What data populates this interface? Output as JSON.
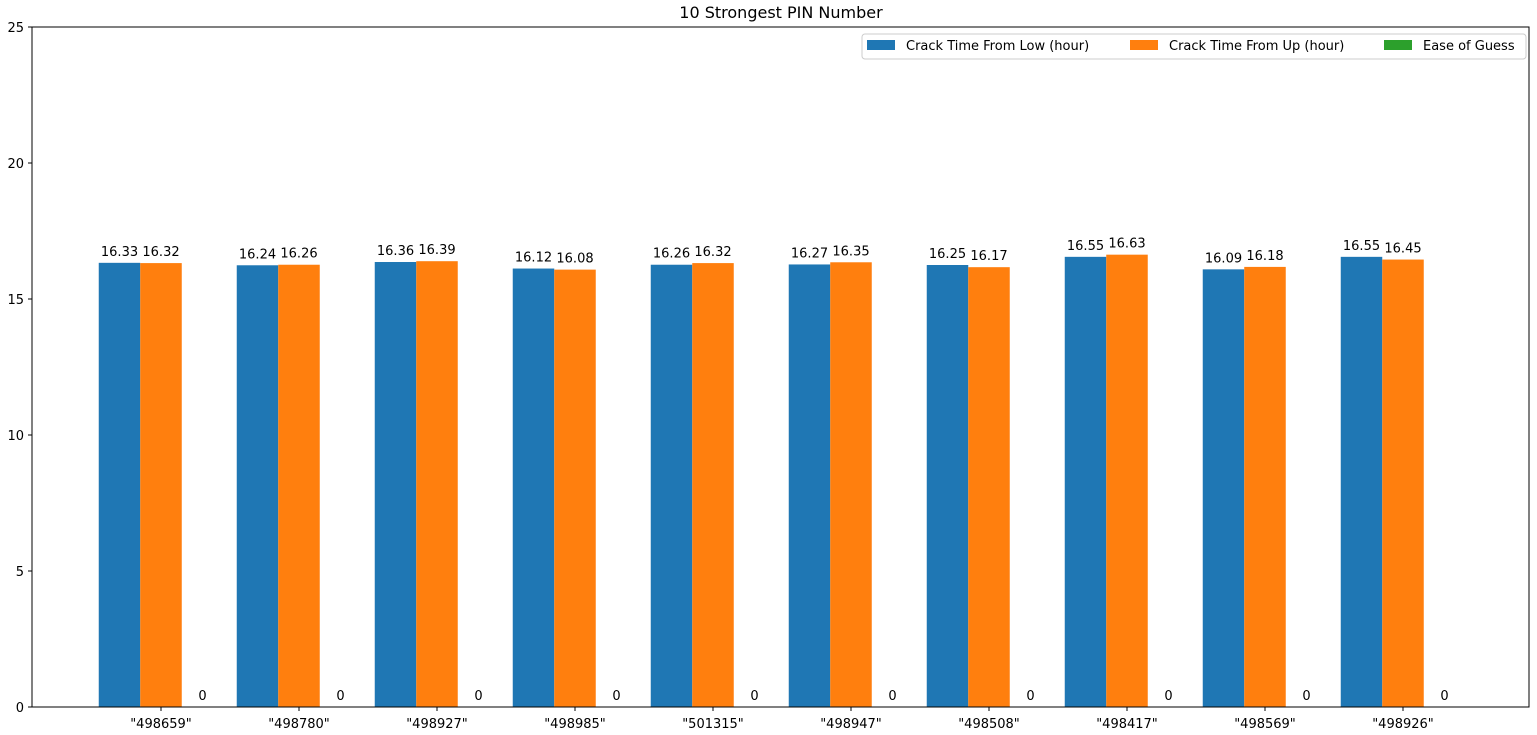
{
  "chart_data": {
    "type": "bar",
    "title": "10 Strongest PIN Number",
    "xlabel": "",
    "ylabel": "",
    "categories": [
      "\"498659\"",
      "\"498780\"",
      "\"498927\"",
      "\"498985\"",
      "\"501315\"",
      "\"498947\"",
      "\"498508\"",
      "\"498417\"",
      "\"498569\"",
      "\"498926\""
    ],
    "series": [
      {
        "name": "Crack Time From Low (hour)",
        "color": "#1f77b4",
        "values": [
          16.33,
          16.24,
          16.36,
          16.12,
          16.26,
          16.27,
          16.25,
          16.55,
          16.09,
          16.55
        ]
      },
      {
        "name": "Crack Time From Up (hour)",
        "color": "#ff7f0e",
        "values": [
          16.32,
          16.26,
          16.39,
          16.08,
          16.32,
          16.35,
          16.17,
          16.63,
          16.18,
          16.45
        ]
      },
      {
        "name": "Ease of Guess",
        "color": "#2ca02c",
        "values": [
          0,
          0,
          0,
          0,
          0,
          0,
          0,
          0,
          0,
          0
        ]
      }
    ],
    "ylim": [
      0,
      25
    ],
    "yticks": [
      0,
      5,
      10,
      15,
      20,
      25
    ],
    "grid": false,
    "legend_position": "top-right"
  }
}
